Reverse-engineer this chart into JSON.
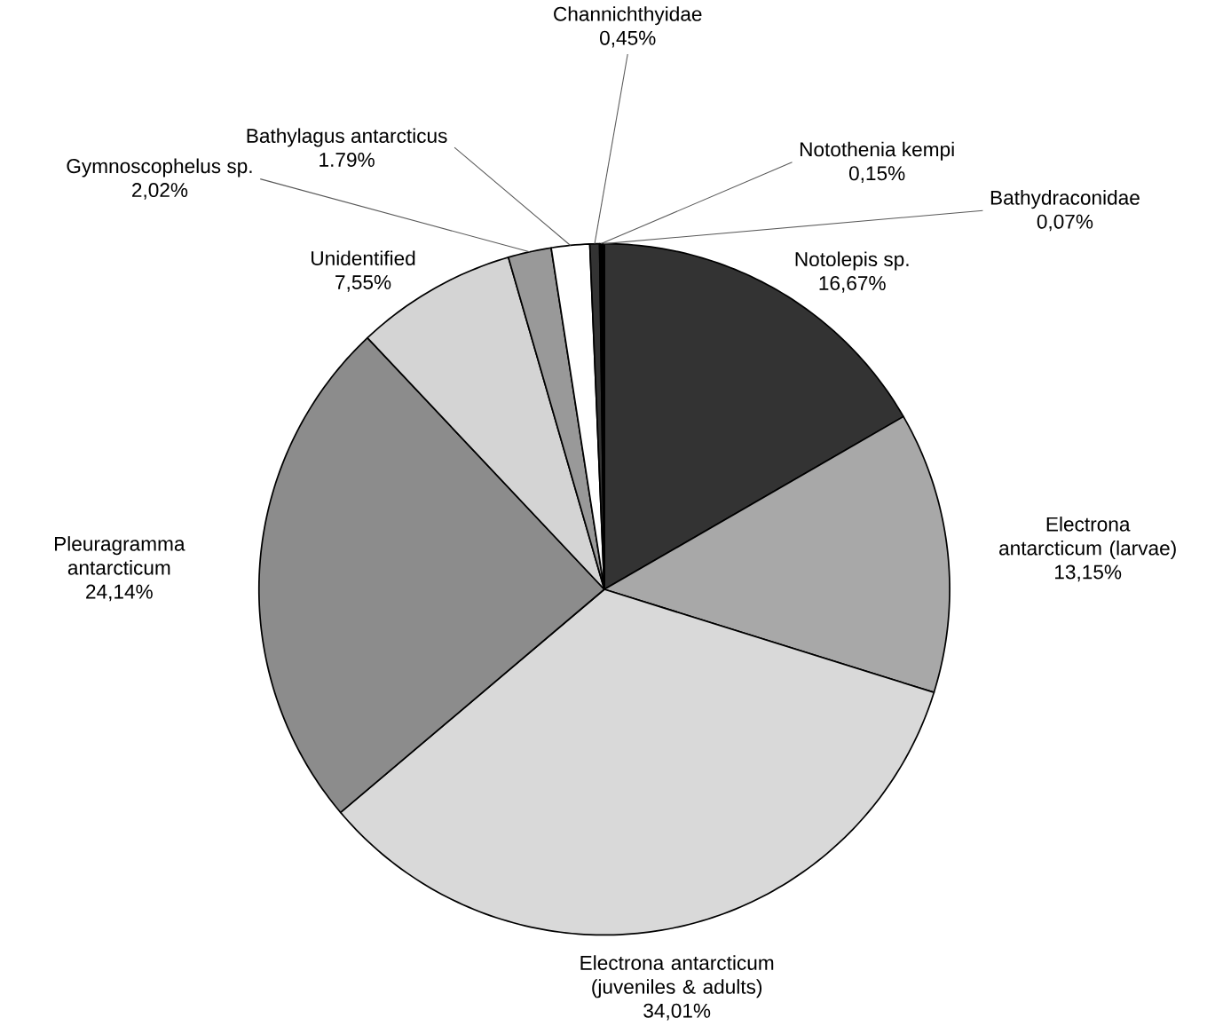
{
  "chart_data": {
    "type": "pie",
    "categories": [
      "Notolepis sp.",
      "Electrona antarcticum (larvae)",
      "Electrona antarcticum (juveniles & adults)",
      "Pleuragramma antarcticum",
      "Unidentified",
      "Gymnoscophelus sp.",
      "Bathylagus antarcticus",
      "Channichthyidae",
      "Notothenia kempi",
      "Bathydraconidae"
    ],
    "values": [
      16.67,
      13.15,
      34.01,
      24.14,
      7.55,
      2.02,
      1.79,
      0.45,
      0.15,
      0.07
    ],
    "value_labels": [
      "16,67%",
      "13,15%",
      "34,01%",
      "24,14%",
      "7,55%",
      "2,02%",
      "1.79%",
      "0,45%",
      "0,15%",
      "0,07%"
    ],
    "colors": [
      "#333333",
      "#a8a8a8",
      "#d9d9d9",
      "#8c8c8c",
      "#d4d4d4",
      "#999999",
      "#ffffff",
      "#333333",
      "#000000",
      "#000000"
    ]
  }
}
